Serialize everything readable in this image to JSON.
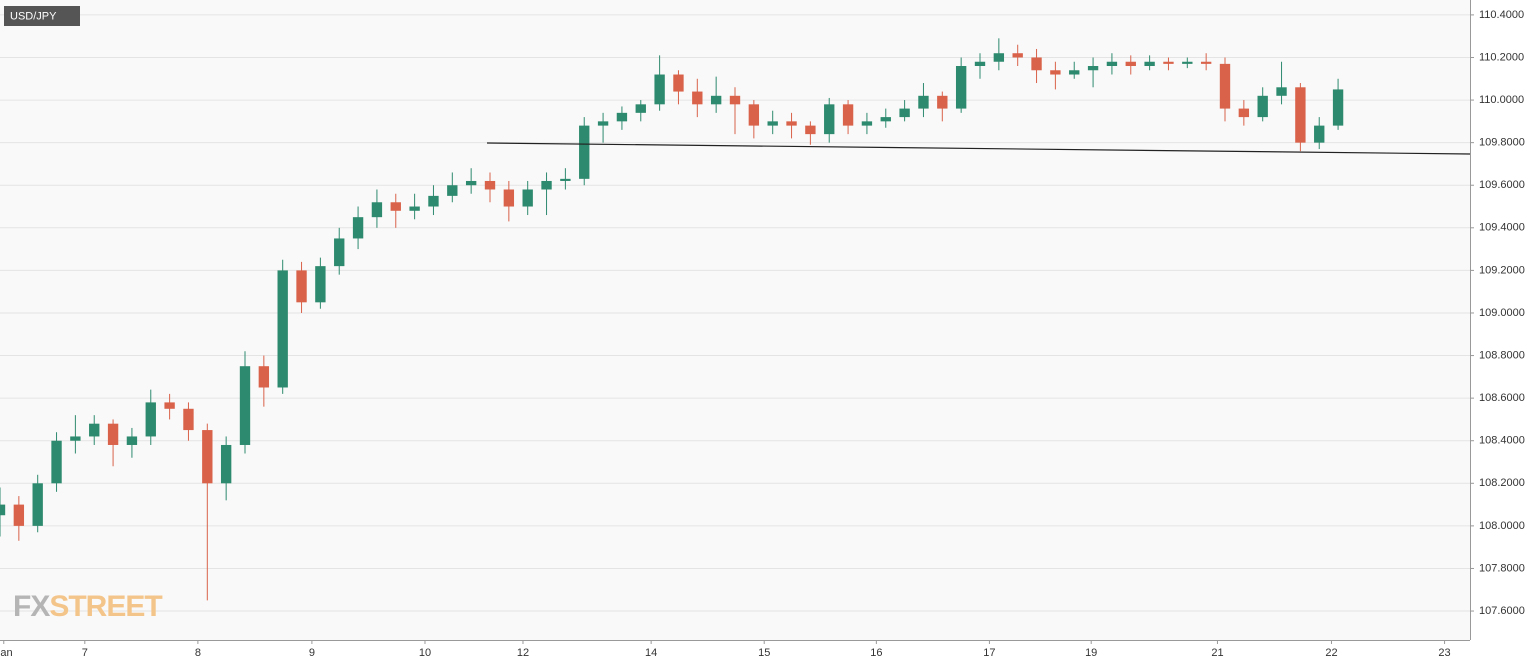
{
  "chart_data": {
    "type": "candlestick",
    "title": "USD/JPY",
    "watermark": [
      "FX",
      "STREET"
    ],
    "up_color": "#2e8a6e",
    "down_color": "#d9624a",
    "grid": true,
    "xlim": [
      0,
      78
    ],
    "ylim": [
      107.464,
      110.47
    ],
    "xticks": [
      {
        "value": 0.2,
        "label": "Jan"
      },
      {
        "value": 4.5,
        "label": "7"
      },
      {
        "value": 10.5,
        "label": "8"
      },
      {
        "value": 16.55,
        "label": "9"
      },
      {
        "value": 22.55,
        "label": "10"
      },
      {
        "value": 27.75,
        "label": "12"
      },
      {
        "value": 34.55,
        "label": "14"
      },
      {
        "value": 40.55,
        "label": "15"
      },
      {
        "value": 46.5,
        "label": "16"
      },
      {
        "value": 52.5,
        "label": "17"
      },
      {
        "value": 57.9,
        "label": "19"
      },
      {
        "value": 64.6,
        "label": "21"
      },
      {
        "value": 70.65,
        "label": "22"
      },
      {
        "value": 76.65,
        "label": "23"
      }
    ],
    "yticks": [
      {
        "value": 107.6,
        "label": "107.6000"
      },
      {
        "value": 107.8,
        "label": "107.8000"
      },
      {
        "value": 108.0,
        "label": "108.0000"
      },
      {
        "value": 108.2,
        "label": "108.2000"
      },
      {
        "value": 108.4,
        "label": "108.4000"
      },
      {
        "value": 108.6,
        "label": "108.6000"
      },
      {
        "value": 108.8,
        "label": "108.8000"
      },
      {
        "value": 109.0,
        "label": "109.0000"
      },
      {
        "value": 109.2,
        "label": "109.2000"
      },
      {
        "value": 109.4,
        "label": "109.4000"
      },
      {
        "value": 109.6,
        "label": "109.6000"
      },
      {
        "value": 109.8,
        "label": "109.8000"
      },
      {
        "value": 110.0,
        "label": "110.0000"
      },
      {
        "value": 110.2,
        "label": "110.2000"
      },
      {
        "value": 110.4,
        "label": "110.4000"
      }
    ],
    "x": [
      0,
      1,
      2,
      3,
      4,
      5,
      6,
      7,
      8,
      9,
      10,
      11,
      12,
      13,
      14,
      15,
      16,
      17,
      18,
      19,
      20,
      21,
      22,
      23,
      24,
      25,
      26,
      27,
      28,
      29,
      30,
      31,
      32,
      33,
      34,
      35,
      36,
      37,
      38,
      39,
      40,
      41,
      42,
      43,
      44,
      45,
      46,
      47,
      48,
      49,
      50,
      51,
      52,
      53,
      54,
      55,
      56,
      57,
      58,
      59,
      60,
      61,
      62,
      63,
      64,
      65,
      66,
      67,
      68,
      69,
      70,
      71
    ],
    "open": [
      108.05,
      108.1,
      108.0,
      108.2,
      108.4,
      108.42,
      108.48,
      108.38,
      108.42,
      108.58,
      108.55,
      108.45,
      108.2,
      108.38,
      108.75,
      108.65,
      109.2,
      109.05,
      109.22,
      109.35,
      109.45,
      109.52,
      109.48,
      109.5,
      109.55,
      109.6,
      109.62,
      109.58,
      109.5,
      109.58,
      109.62,
      109.63,
      109.88,
      109.9,
      109.94,
      109.98,
      110.12,
      110.04,
      109.98,
      110.02,
      109.98,
      109.88,
      109.9,
      109.88,
      109.84,
      109.98,
      109.88,
      109.9,
      109.92,
      109.96,
      110.02,
      109.96,
      110.16,
      110.18,
      110.22,
      110.2,
      110.14,
      110.12,
      110.14,
      110.16,
      110.18,
      110.16,
      110.18,
      110.17,
      110.18,
      110.17,
      109.96,
      109.92,
      110.02,
      110.06,
      109.8,
      109.88
    ],
    "high": [
      108.18,
      108.14,
      108.24,
      108.44,
      108.52,
      108.52,
      108.5,
      108.46,
      108.64,
      108.62,
      108.58,
      108.48,
      108.42,
      108.82,
      108.8,
      109.25,
      109.24,
      109.26,
      109.4,
      109.5,
      109.58,
      109.56,
      109.56,
      109.6,
      109.66,
      109.68,
      109.66,
      109.62,
      109.62,
      109.66,
      109.68,
      109.92,
      109.94,
      109.97,
      110.0,
      110.21,
      110.14,
      110.1,
      110.11,
      110.06,
      110.0,
      109.95,
      109.94,
      109.9,
      110.01,
      110.0,
      109.94,
      109.96,
      110.0,
      110.08,
      110.04,
      110.2,
      110.22,
      110.29,
      110.26,
      110.24,
      110.18,
      110.18,
      110.2,
      110.22,
      110.21,
      110.21,
      110.2,
      110.2,
      110.22,
      110.2,
      110.0,
      110.06,
      110.18,
      110.08,
      109.92,
      110.1
    ],
    "low": [
      107.95,
      107.93,
      107.97,
      108.16,
      108.34,
      108.38,
      108.28,
      108.32,
      108.38,
      108.5,
      108.4,
      107.65,
      108.12,
      108.34,
      108.56,
      108.62,
      109.0,
      109.02,
      109.18,
      109.3,
      109.4,
      109.4,
      109.44,
      109.46,
      109.52,
      109.56,
      109.52,
      109.43,
      109.46,
      109.46,
      109.58,
      109.6,
      109.8,
      109.86,
      109.9,
      109.95,
      109.98,
      109.92,
      109.94,
      109.84,
      109.82,
      109.84,
      109.82,
      109.79,
      109.8,
      109.84,
      109.84,
      109.87,
      109.9,
      109.92,
      109.9,
      109.94,
      110.1,
      110.14,
      110.16,
      110.08,
      110.05,
      110.1,
      110.06,
      110.12,
      110.12,
      110.14,
      110.14,
      110.15,
      110.14,
      109.9,
      109.88,
      109.9,
      109.98,
      109.76,
      109.77,
      109.86
    ],
    "close": [
      108.1,
      108.0,
      108.2,
      108.4,
      108.42,
      108.48,
      108.38,
      108.42,
      108.58,
      108.55,
      108.45,
      108.2,
      108.38,
      108.75,
      108.65,
      109.2,
      109.05,
      109.22,
      109.35,
      109.45,
      109.52,
      109.48,
      109.5,
      109.55,
      109.6,
      109.62,
      109.58,
      109.5,
      109.58,
      109.62,
      109.63,
      109.88,
      109.9,
      109.94,
      109.98,
      110.12,
      110.04,
      109.98,
      110.02,
      109.98,
      109.88,
      109.9,
      109.88,
      109.84,
      109.98,
      109.88,
      109.9,
      109.92,
      109.96,
      110.02,
      109.96,
      110.16,
      110.18,
      110.22,
      110.2,
      110.14,
      110.12,
      110.14,
      110.16,
      110.18,
      110.16,
      110.18,
      110.17,
      110.18,
      110.17,
      109.96,
      109.92,
      110.02,
      110.06,
      109.8,
      109.88,
      110.05
    ]
  }
}
